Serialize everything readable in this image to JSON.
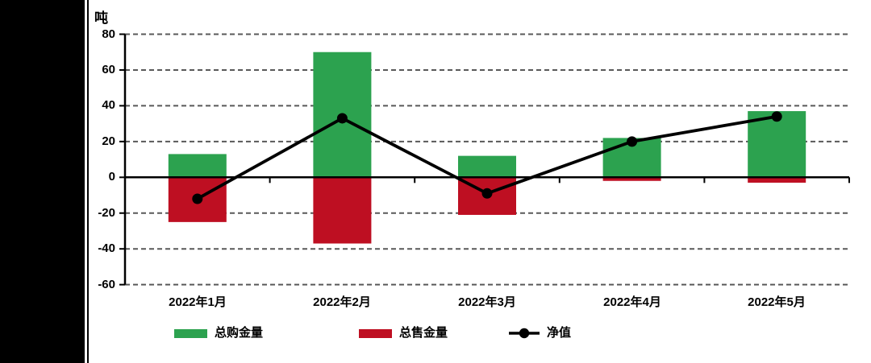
{
  "window": {
    "background_color": "#ffffff",
    "left_panel_color": "#000000"
  },
  "chart_data": {
    "type": "bar",
    "subtype": "combo-bar-line",
    "unit_label": "吨",
    "categories": [
      "2022年1月",
      "2022年2月",
      "2022年3月",
      "2022年4月",
      "2022年5月"
    ],
    "series": [
      {
        "name": "总购金量",
        "type": "bar",
        "color": "#2CA24F",
        "values": [
          13,
          70,
          12,
          22,
          37
        ]
      },
      {
        "name": "总售金量",
        "type": "bar",
        "color": "#BE0F22",
        "values": [
          -25,
          -37,
          -21,
          -2,
          -3
        ]
      },
      {
        "name": "净值",
        "type": "line",
        "color": "#000000",
        "values": [
          -12,
          33,
          -9,
          20,
          34
        ]
      }
    ],
    "ylim": [
      -60,
      80
    ],
    "ytick_interval": 20,
    "yticks": [
      80,
      60,
      40,
      20,
      0,
      -20,
      -40,
      -60
    ],
    "grid": "horizontal-dashed",
    "grid_color": "#595959",
    "axis_color": "#000000",
    "legend_position": "bottom"
  }
}
